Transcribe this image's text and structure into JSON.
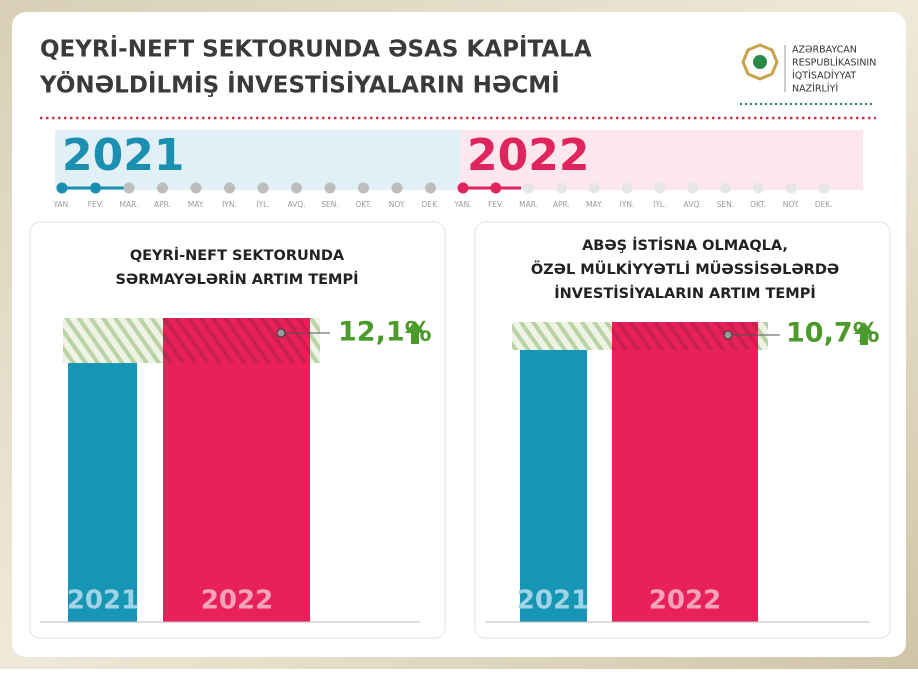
{
  "header": {
    "title_lines": [
      "QEYRİ-NEFT SEKTORUNDA ƏSAS KAPİTALA",
      "YÖNƏLDİLMİŞ İNVESTİSİYALARIN HƏCMİ"
    ],
    "logo_lines": [
      "AZƏRBAYCAN",
      "RESPUBLİKASININ",
      "İQTİSADİYYAT",
      "NAZİRLİYİ"
    ]
  },
  "timeline": {
    "years": [
      "2021",
      "2022"
    ],
    "months": [
      "YAN.",
      "FEV.",
      "MAR.",
      "APR.",
      "MAY.",
      "İYN.",
      "İYL.",
      "AVQ.",
      "SEN.",
      "OKT.",
      "NOY.",
      "DEK."
    ]
  },
  "panels": [
    {
      "title_lines": [
        "QEYRİ-NEFT SEKTORUNDA",
        "SƏRMAYƏLƏRİN ARTIM TEMPİ"
      ],
      "growth": "12,1%",
      "bar_labels": [
        "2021",
        "2022"
      ]
    },
    {
      "title_lines": [
        "ABƏŞ İSTİSNA OLMAQLA,",
        "ÖZƏL MÜLKİYYƏTLİ MÜƏSSİSƏLƏRDƏ",
        "İNVESTİSİYALARIN ARTIM TEMPİ"
      ],
      "growth": "10,7%",
      "bar_labels": [
        "2021",
        "2022"
      ]
    }
  ]
}
